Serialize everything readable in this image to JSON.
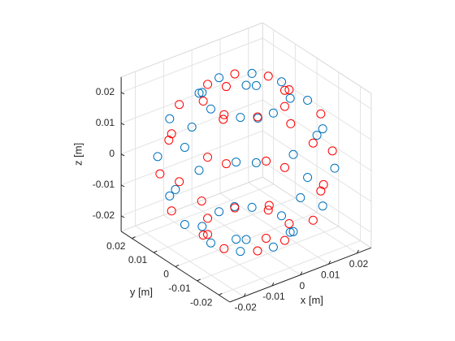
{
  "chart_data": {
    "type": "scatter3d",
    "xlabel": "x [m]",
    "ylabel": "y [m]",
    "zlabel": "z [m]",
    "xlim": [
      -0.025,
      0.025
    ],
    "ylim": [
      -0.025,
      0.025
    ],
    "zlim": [
      -0.025,
      0.025
    ],
    "xticks": [
      -0.02,
      -0.01,
      0,
      0.01,
      0.02
    ],
    "yticks": [
      -0.02,
      -0.01,
      0,
      0.01,
      0.02
    ],
    "zticks": [
      -0.02,
      -0.01,
      0,
      0.01,
      0.02
    ],
    "grid": true,
    "series": [
      {
        "color": "#0072bd",
        "x": [
          0,
          0.0125,
          0.0088,
          0,
          -0.0088,
          -0.0125,
          -0.0088,
          0,
          0.0088,
          0.0217,
          0.0153,
          0,
          -0.0153,
          -0.0217,
          -0.0153,
          0,
          0.0153,
          0.025,
          0.0177,
          0,
          -0.0177,
          -0.025,
          -0.0177,
          0,
          0.0177,
          0.0217,
          0.0153,
          0,
          -0.0153,
          -0.0217,
          -0.0153,
          0,
          0.0153,
          0.0125,
          0.0088,
          0,
          -0.0088,
          -0.0125,
          -0.0088,
          0,
          0.0088,
          0
        ],
        "y": [
          0,
          0,
          0.0088,
          0.0125,
          0.0088,
          0,
          -0.0088,
          -0.0125,
          -0.0088,
          0,
          0.0153,
          0.0217,
          0.0153,
          0,
          -0.0153,
          -0.0217,
          -0.0153,
          0,
          0.0177,
          0.025,
          0.0177,
          0,
          -0.0177,
          -0.025,
          -0.0177,
          0,
          0.0153,
          0.0217,
          0.0153,
          0,
          -0.0153,
          -0.0217,
          -0.0153,
          0,
          0.0088,
          0.0125,
          0.0088,
          0,
          -0.0088,
          -0.0125,
          -0.0088,
          0
        ],
        "z": [
          0.025,
          0.0217,
          0.0217,
          0.0217,
          0.0217,
          0.0217,
          0.0217,
          0.0217,
          0.0217,
          0.0125,
          0.0125,
          0.0125,
          0.0125,
          0.0125,
          0.0125,
          0.0125,
          0.0125,
          0,
          0,
          0,
          0,
          0,
          0,
          0,
          0,
          -0.0125,
          -0.0125,
          -0.0125,
          -0.0125,
          -0.0125,
          -0.0125,
          -0.0125,
          -0.0125,
          -0.0217,
          -0.0217,
          -0.0217,
          -0.0217,
          -0.0217,
          -0.0217,
          -0.0217,
          -0.0217,
          -0.025
        ]
      },
      {
        "color": "#ff0000",
        "x": [
          0.0115,
          0.0048,
          -0.0048,
          -0.0115,
          -0.0115,
          -0.0048,
          0.0048,
          0.0115,
          0.02,
          0.0083,
          -0.0083,
          -0.02,
          -0.02,
          -0.0083,
          0.0083,
          0.02,
          0.0231,
          0.0096,
          -0.0096,
          -0.0231,
          -0.0231,
          -0.0096,
          0.0096,
          0.0231,
          0.02,
          0.0083,
          -0.0083,
          -0.02,
          -0.02,
          -0.0083,
          0.0083,
          0.02,
          0.0115,
          0.0048,
          -0.0048,
          -0.0115,
          -0.0115,
          -0.0048,
          0.0048,
          0.0115
        ],
        "y": [
          0.0048,
          0.0115,
          0.0115,
          0.0048,
          -0.0048,
          -0.0115,
          -0.0115,
          -0.0048,
          0.0083,
          0.02,
          0.02,
          0.0083,
          -0.0083,
          -0.02,
          -0.02,
          -0.0083,
          0.0096,
          0.0231,
          0.0231,
          0.0096,
          -0.0096,
          -0.0231,
          -0.0231,
          -0.0096,
          0.0083,
          0.02,
          0.02,
          0.0083,
          -0.0083,
          -0.02,
          -0.02,
          -0.0083,
          0.0048,
          0.0115,
          0.0115,
          0.0048,
          -0.0048,
          -0.0115,
          -0.0115,
          -0.0048
        ],
        "z": [
          0.0217,
          0.0217,
          0.0217,
          0.0217,
          0.0217,
          0.0217,
          0.0217,
          0.0217,
          0.0125,
          0.0125,
          0.0125,
          0.0125,
          0.0125,
          0.0125,
          0.0125,
          0.0125,
          0,
          0,
          0,
          0,
          0,
          0,
          0,
          0,
          -0.0125,
          -0.0125,
          -0.0125,
          -0.0125,
          -0.0125,
          -0.0125,
          -0.0125,
          -0.0125,
          -0.0217,
          -0.0217,
          -0.0217,
          -0.0217,
          -0.0217,
          -0.0217,
          -0.0217,
          -0.0217
        ]
      }
    ]
  }
}
